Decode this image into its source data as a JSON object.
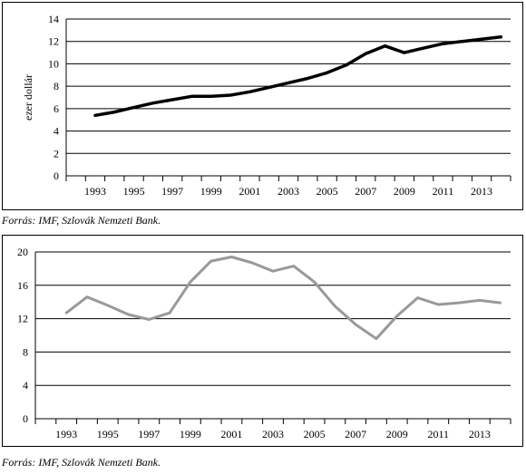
{
  "chart_data": [
    {
      "type": "line",
      "title": "",
      "xlabel": "",
      "ylabel": "ezer dollár",
      "ylim": [
        0,
        14
      ],
      "yticks": [
        0,
        2,
        4,
        6,
        8,
        10,
        12,
        14
      ],
      "xlim": [
        1992,
        2015
      ],
      "xticks": [
        1993,
        1995,
        1997,
        1999,
        2001,
        2003,
        2005,
        2007,
        2009,
        2011,
        2013
      ],
      "grid": true,
      "line_color": "#000000",
      "x": [
        1993,
        1994,
        1995,
        1996,
        1997,
        1998,
        1999,
        2000,
        2001,
        2002,
        2003,
        2004,
        2005,
        2006,
        2007,
        2008,
        2009,
        2010,
        2011,
        2012,
        2013,
        2014
      ],
      "values": [
        5.4,
        5.7,
        6.1,
        6.5,
        6.8,
        7.1,
        7.1,
        7.2,
        7.5,
        7.9,
        8.3,
        8.7,
        9.2,
        9.9,
        10.9,
        11.6,
        11.0,
        11.4,
        11.8,
        12.0,
        12.2,
        12.4
      ]
    },
    {
      "type": "line",
      "title": "",
      "xlabel": "",
      "ylabel": "",
      "ylim": [
        0,
        20
      ],
      "yticks": [
        0,
        4,
        8,
        12,
        16,
        20
      ],
      "xlim": [
        1992,
        2015
      ],
      "xticks": [
        1993,
        1995,
        1997,
        1999,
        2001,
        2003,
        2005,
        2007,
        2009,
        2011,
        2013
      ],
      "grid": true,
      "line_color": "#999999",
      "x": [
        1993,
        1994,
        1995,
        1996,
        1997,
        1998,
        1999,
        2000,
        2001,
        2002,
        2003,
        2004,
        2005,
        2006,
        2007,
        2008,
        2009,
        2010,
        2011,
        2012,
        2013,
        2014
      ],
      "values": [
        12.7,
        14.6,
        13.6,
        12.5,
        11.9,
        12.7,
        16.4,
        18.9,
        19.4,
        18.7,
        17.7,
        18.3,
        16.4,
        13.5,
        11.3,
        9.6,
        12.3,
        14.5,
        13.7,
        13.9,
        14.2,
        13.9
      ]
    }
  ],
  "captions": {
    "source1": "Forrás: IMF, Szlovák Nemzeti Bank.",
    "source2": "Forrás: IMF, Szlovák Nemzeti Bank."
  }
}
